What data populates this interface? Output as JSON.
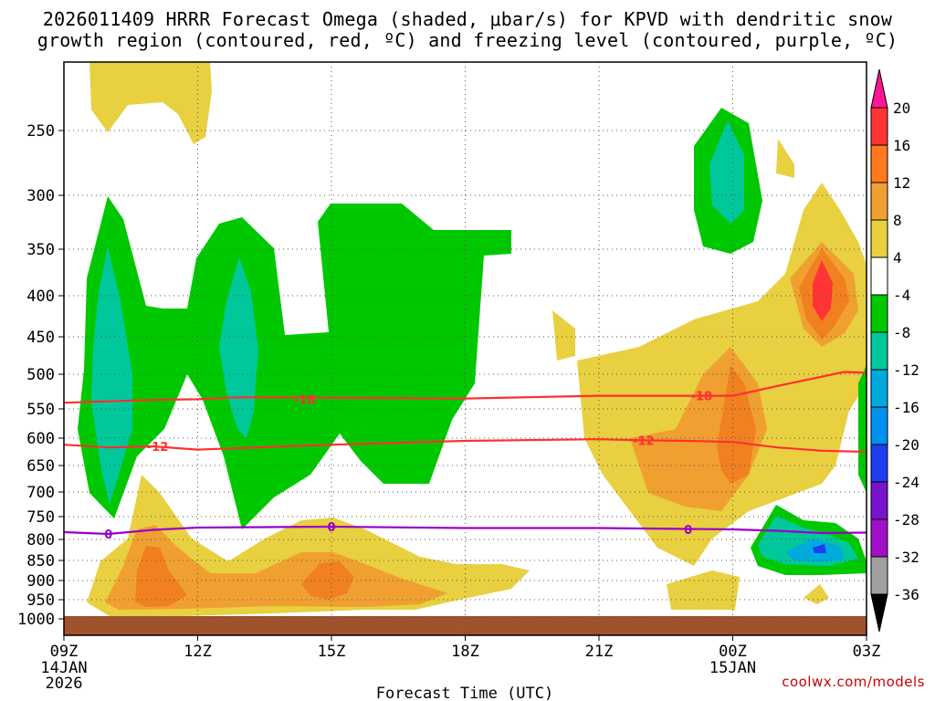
{
  "title": {
    "line1": "2026011409 HRRR Forecast Omega (shaded, μbar/s) for KPVD with dendritic snow",
    "line2": "growth region (contoured, red, ºC) and freezing level (contoured, purple, ºC)"
  },
  "colors": {
    "dendritic_contour": "#ff3030",
    "freezing_contour": "#9900cc",
    "terrain": "#a0522d"
  },
  "chart_data": {
    "type": "heatmap",
    "title": "2026011409 HRRR Forecast Omega (shaded, μbar/s) for KPVD with dendritic snow growth region (contoured, red, ºC) and freezing level (contoured, purple, ºC)",
    "xlabel": "Forecast Time (UTC)",
    "ylabel": "",
    "x_ticks": [
      {
        "hour": 0,
        "label": "09Z",
        "sub1": "14JAN",
        "sub2": "2026"
      },
      {
        "hour": 3,
        "label": "12Z",
        "sub1": "",
        "sub2": ""
      },
      {
        "hour": 6,
        "label": "15Z",
        "sub1": "",
        "sub2": ""
      },
      {
        "hour": 9,
        "label": "18Z",
        "sub1": "",
        "sub2": ""
      },
      {
        "hour": 12,
        "label": "21Z",
        "sub1": "",
        "sub2": ""
      },
      {
        "hour": 15,
        "label": "00Z",
        "sub1": "15JAN",
        "sub2": ""
      },
      {
        "hour": 18,
        "label": "03Z",
        "sub1": "",
        "sub2": ""
      }
    ],
    "xlim_hours": [
      0,
      18
    ],
    "y_ticks_hpa": [
      "250",
      "300",
      "350",
      "400",
      "450",
      "500",
      "550",
      "600",
      "650",
      "700",
      "750",
      "800",
      "850",
      "900",
      "950",
      "1000"
    ],
    "colorbar": {
      "labels": [
        "20",
        "16",
        "12",
        "8",
        "4",
        "-4",
        "-8",
        "-12",
        "-16",
        "-20",
        "-24",
        "-28",
        "-32",
        "-36"
      ],
      "colors": [
        "#ff1493",
        "#ff3535",
        "#ff7a1f",
        "#f0a030",
        "#e8d040",
        "#ffffff",
        "#00c800",
        "#00c89b",
        "#00aadd",
        "#0090ee",
        "#1e3cf0",
        "#7a14cc",
        "#a010c8",
        "#a0a0a0",
        "#000000"
      ]
    },
    "contours": [
      {
        "name": "dendritic-upper",
        "value": "-18",
        "color": "#ff3030",
        "points": [
          [
            0,
            541
          ],
          [
            2,
            537
          ],
          [
            3,
            536
          ],
          [
            4,
            533
          ],
          [
            6,
            534
          ],
          [
            9,
            535
          ],
          [
            12,
            531
          ],
          [
            14,
            531
          ],
          [
            15,
            531
          ],
          [
            16,
            517
          ],
          [
            17.5,
            497
          ],
          [
            18,
            498
          ]
        ]
      },
      {
        "name": "dendritic-lower",
        "value": "-12",
        "color": "#ff3030",
        "points": [
          [
            0,
            612
          ],
          [
            1,
            617
          ],
          [
            2,
            615
          ],
          [
            3,
            621
          ],
          [
            6,
            612
          ],
          [
            9,
            605
          ],
          [
            12,
            602
          ],
          [
            13,
            604
          ],
          [
            14,
            605
          ],
          [
            15,
            607
          ],
          [
            16,
            617
          ],
          [
            17,
            623
          ],
          [
            18,
            625
          ]
        ]
      },
      {
        "name": "freezing-level",
        "value": "0",
        "color": "#9900cc",
        "points": [
          [
            0,
            784
          ],
          [
            1,
            788
          ],
          [
            2,
            779
          ],
          [
            3,
            774
          ],
          [
            6,
            772
          ],
          [
            9,
            775
          ],
          [
            12,
            775
          ],
          [
            15,
            778
          ],
          [
            16,
            781
          ],
          [
            17,
            786
          ],
          [
            18,
            785
          ]
        ]
      }
    ],
    "contour_labels": [
      {
        "text": "-18",
        "hour": 5.4,
        "hpa": 536,
        "color": "#ff3030"
      },
      {
        "text": "-12",
        "hour": 2.1,
        "hpa": 615,
        "color": "#ff3030"
      },
      {
        "text": "-18",
        "hour": 14.3,
        "hpa": 531,
        "color": "#ff3030"
      },
      {
        "text": "-12",
        "hour": 13.0,
        "hpa": 604,
        "color": "#ff3030"
      },
      {
        "text": "0",
        "hour": 1.0,
        "hpa": 788,
        "color": "#9900cc"
      },
      {
        "text": "0",
        "hour": 6.0,
        "hpa": 772,
        "color": "#9900cc"
      },
      {
        "text": "0",
        "hour": 14.0,
        "hpa": 778,
        "color": "#9900cc"
      }
    ]
  },
  "credit": "coolwx.com/models"
}
